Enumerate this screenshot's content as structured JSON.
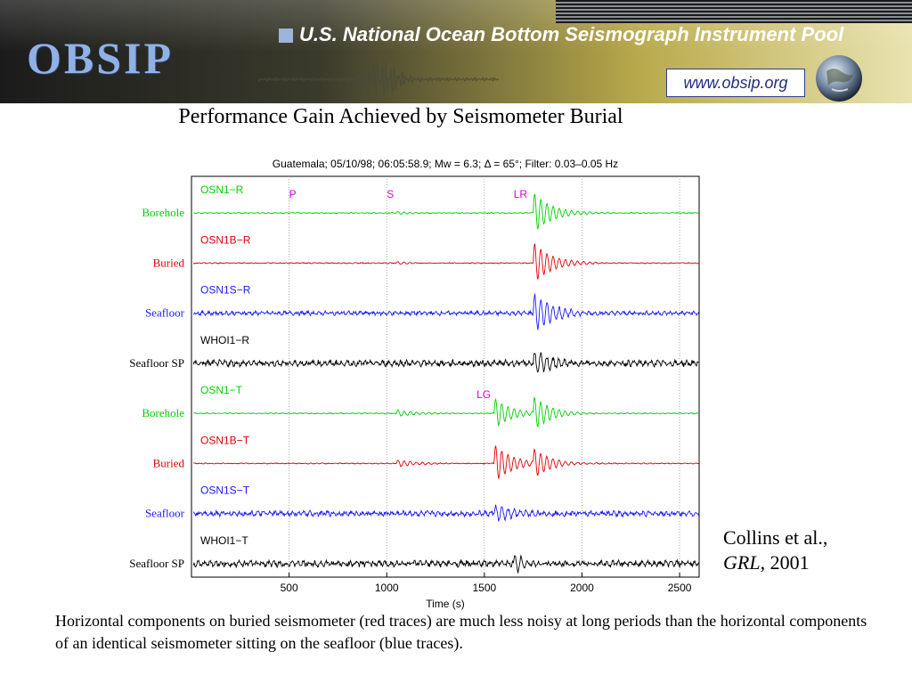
{
  "header": {
    "logo": "OBSIP",
    "title": "U.S. National Ocean Bottom Seismograph Instrument Pool",
    "url": "www.obsip.org",
    "colors": {
      "logo": "#8fb1e6",
      "url": "#1f2f80"
    }
  },
  "page_title": "Performance Gain Achieved by Seismometer Burial",
  "chart_data": {
    "type": "line",
    "title": "Guatemala; 05/10/98; 06:05:58.9; Mw = 6.3; Δ = 65°; Filter: 0.03–0.05 Hz",
    "xlabel": "Time (s)",
    "xlim": [
      0,
      2600
    ],
    "xticks": [
      500,
      1000,
      1500,
      2000,
      2500
    ],
    "grid": "x",
    "phases": [
      {
        "label": "P",
        "time": 500,
        "row": 0
      },
      {
        "label": "S",
        "time": 1000,
        "row": 0
      },
      {
        "label": "LR",
        "time": 1650,
        "row": 0
      },
      {
        "label": "LG",
        "time": 1460,
        "row": 4
      }
    ],
    "series": [
      {
        "name": "OSN1−R",
        "site": "Borehole",
        "color": "#00d000",
        "noise": 0.5,
        "events": [
          [
            1050,
            0.2
          ],
          [
            1750,
            3.0
          ]
        ]
      },
      {
        "name": "OSN1B−R",
        "site": "Buried",
        "color": "#e00000",
        "noise": 0.5,
        "events": [
          [
            1050,
            0.2
          ],
          [
            1750,
            3.0
          ]
        ]
      },
      {
        "name": "OSN1S−R",
        "site": "Seafloor",
        "color": "#1a1aff",
        "noise": 2.0,
        "events": [
          [
            1750,
            2.8
          ]
        ]
      },
      {
        "name": "WHOI1−R",
        "site": "Seafloor SP",
        "color": "#000000",
        "noise": 3.0,
        "events": [
          [
            1750,
            1.6
          ]
        ]
      },
      {
        "name": "OSN1−T",
        "site": "Borehole",
        "color": "#00d000",
        "noise": 0.5,
        "events": [
          [
            1050,
            0.5
          ],
          [
            1550,
            2.2
          ],
          [
            1750,
            2.6
          ]
        ]
      },
      {
        "name": "OSN1B−T",
        "site": "Buried",
        "color": "#e00000",
        "noise": 0.5,
        "events": [
          [
            1050,
            0.5
          ],
          [
            1550,
            2.8
          ],
          [
            1750,
            2.4
          ]
        ]
      },
      {
        "name": "OSN1S−T",
        "site": "Seafloor",
        "color": "#1a1aff",
        "noise": 2.6,
        "events": [
          [
            1550,
            1.2
          ]
        ]
      },
      {
        "name": "WHOI1−T",
        "site": "Seafloor SP",
        "color": "#000000",
        "noise": 3.0,
        "events": [
          [
            1650,
            1.5
          ]
        ]
      }
    ]
  },
  "citation": {
    "authors": "Collins et al.,",
    "journal": "GRL",
    "year": ", 2001"
  },
  "caption": "Horizontal components on buried seismometer (red traces) are much less noisy at long periods than the horizontal components of an identical seismometer sitting on the seafloor (blue traces)."
}
